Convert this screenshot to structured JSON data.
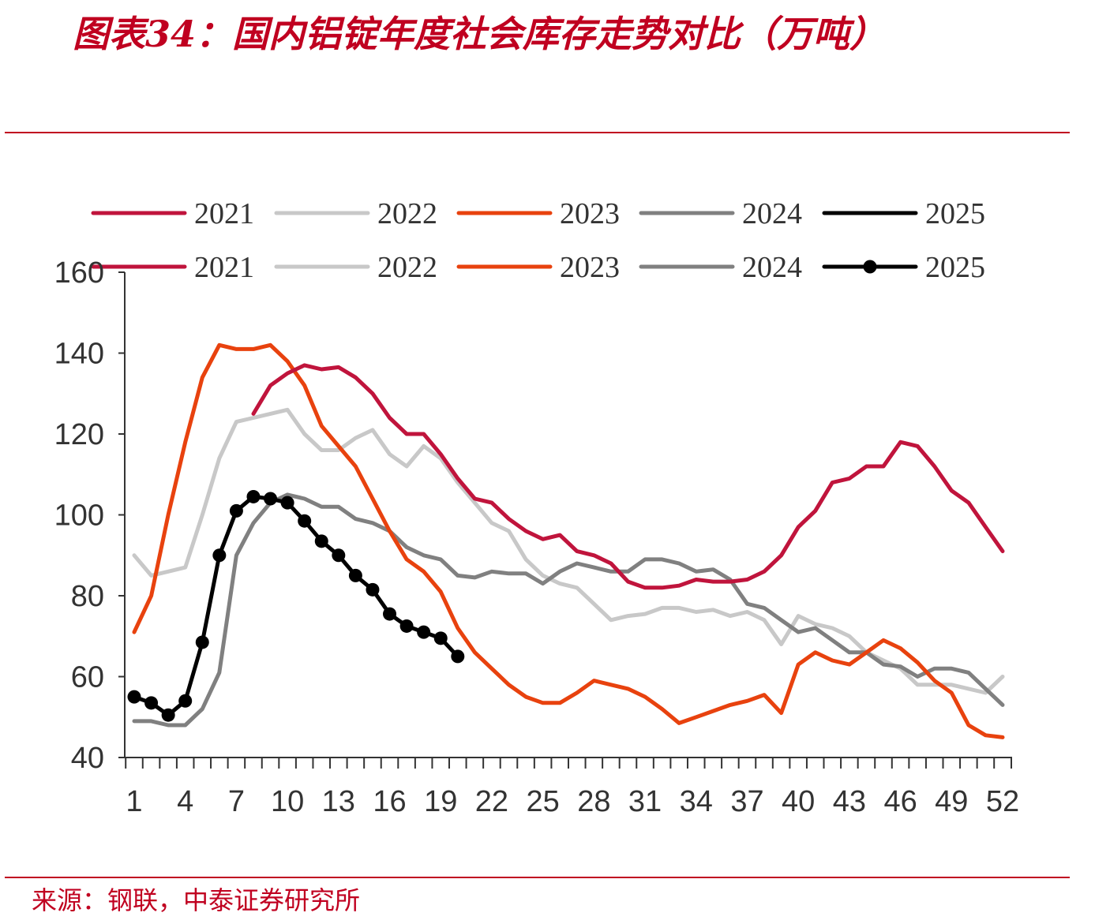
{
  "title": "图表34：国内铝锭年度社会库存走势对比（万吨）",
  "source": "来源：钢联，中泰证券研究所",
  "chart_data": {
    "type": "line",
    "title": "图表34：国内铝锭年度社会库存走势对比（万吨）",
    "xlabel": "",
    "ylabel": "",
    "ylim": [
      40,
      160
    ],
    "yticks": [
      40,
      60,
      80,
      100,
      120,
      140,
      160
    ],
    "xlim": [
      1,
      52
    ],
    "xticks": [
      1,
      4,
      7,
      10,
      13,
      16,
      19,
      22,
      25,
      28,
      31,
      34,
      37,
      40,
      43,
      46,
      49,
      52
    ],
    "legend": [
      "2021",
      "2022",
      "2023",
      "2024",
      "2025"
    ],
    "legend_placement": "top",
    "grid": false,
    "colors": {
      "2021": "#c0143c",
      "2022": "#c8c8c8",
      "2023": "#e8420e",
      "2024": "#808080",
      "2025": "#000000"
    },
    "series": [
      {
        "name": "2021",
        "x": [
          8,
          9,
          10,
          11,
          12,
          13,
          14,
          15,
          16,
          17,
          18,
          19,
          20,
          21,
          22,
          23,
          24,
          25,
          26,
          27,
          28,
          29,
          30,
          31,
          32,
          33,
          34,
          35,
          36,
          37,
          38,
          39,
          40,
          41,
          42,
          43,
          44,
          45,
          46,
          47,
          48,
          49,
          50,
          51,
          52
        ],
        "values": [
          125,
          132,
          135,
          137,
          136,
          136.5,
          134,
          130,
          124,
          120,
          120,
          115,
          109,
          104,
          103,
          99,
          96,
          94,
          95,
          91,
          90,
          88,
          83.5,
          82,
          82,
          82.5,
          84,
          83.5,
          83.5,
          84,
          86,
          90,
          97,
          101,
          108,
          109,
          112,
          112,
          118,
          117,
          112,
          106,
          103,
          97,
          91
        ]
      },
      {
        "name": "2022",
        "x": [
          1,
          2,
          3,
          4,
          5,
          6,
          7,
          8,
          9,
          10,
          11,
          12,
          13,
          14,
          15,
          16,
          17,
          18,
          19,
          20,
          21,
          22,
          23,
          24,
          25,
          26,
          27,
          28,
          29,
          30,
          31,
          32,
          33,
          34,
          35,
          36,
          37,
          38,
          39,
          40,
          41,
          42,
          43,
          44,
          45,
          46,
          47,
          48,
          49,
          50,
          51,
          52
        ],
        "values": [
          90,
          85,
          86,
          87,
          100,
          114,
          123,
          124,
          125,
          126,
          120,
          116,
          116,
          119,
          121,
          115,
          112,
          117,
          114,
          108,
          103,
          98,
          96,
          89,
          85,
          83,
          82,
          78,
          74,
          75,
          75.5,
          77,
          77,
          76,
          76.5,
          75,
          76,
          74,
          68,
          75,
          73,
          72,
          70,
          66,
          64,
          62,
          58,
          58,
          58,
          57,
          56,
          60
        ]
      },
      {
        "name": "2023",
        "x": [
          1,
          2,
          3,
          4,
          5,
          6,
          7,
          8,
          9,
          10,
          11,
          12,
          13,
          14,
          15,
          16,
          17,
          18,
          19,
          20,
          21,
          22,
          23,
          24,
          25,
          26,
          27,
          28,
          29,
          30,
          31,
          32,
          33,
          34,
          35,
          36,
          37,
          38,
          39,
          40,
          41,
          42,
          43,
          44,
          45,
          46,
          47,
          48,
          49,
          50,
          51,
          52
        ],
        "values": [
          71,
          80,
          100,
          118,
          134,
          142,
          141,
          141,
          142,
          138,
          132,
          122,
          117,
          112,
          104,
          96,
          89,
          86,
          81,
          72,
          66,
          62,
          58,
          55,
          53.5,
          53.5,
          56,
          59,
          58,
          57,
          55,
          52,
          48.5,
          50,
          51.5,
          53,
          54,
          55.5,
          51,
          63,
          66,
          64,
          63,
          66,
          69,
          67,
          63.5,
          59,
          56,
          48,
          45.5,
          45
        ]
      },
      {
        "name": "2024",
        "x": [
          1,
          2,
          3,
          4,
          5,
          6,
          7,
          8,
          9,
          10,
          11,
          12,
          13,
          14,
          15,
          16,
          17,
          18,
          19,
          20,
          21,
          22,
          23,
          24,
          25,
          26,
          27,
          28,
          29,
          30,
          31,
          32,
          33,
          34,
          35,
          36,
          37,
          38,
          39,
          40,
          41,
          42,
          43,
          44,
          45,
          46,
          47,
          48,
          49,
          50,
          51,
          52
        ],
        "values": [
          49,
          49,
          48,
          48,
          52,
          61,
          90,
          98,
          103,
          105,
          104,
          102,
          102,
          99,
          98,
          96,
          92,
          90,
          89,
          85,
          84.5,
          86,
          85.5,
          85.5,
          83,
          86,
          88,
          87,
          86,
          86,
          89,
          89,
          88,
          86,
          86.5,
          84,
          78,
          77,
          74,
          71,
          72,
          69,
          66,
          66,
          63,
          62.5,
          60,
          62,
          62,
          61,
          57,
          53
        ]
      },
      {
        "name": "2025",
        "x": [
          1,
          2,
          3,
          4,
          5,
          6,
          7,
          8,
          9,
          10,
          11,
          12,
          13,
          14,
          15,
          16,
          17,
          18,
          19,
          20
        ],
        "values": [
          55,
          53.5,
          50.5,
          54,
          68.5,
          90,
          101,
          104.5,
          104,
          103,
          98.5,
          93.5,
          90,
          85,
          81.5,
          75.5,
          72.5,
          71,
          69.5,
          65
        ]
      }
    ]
  }
}
